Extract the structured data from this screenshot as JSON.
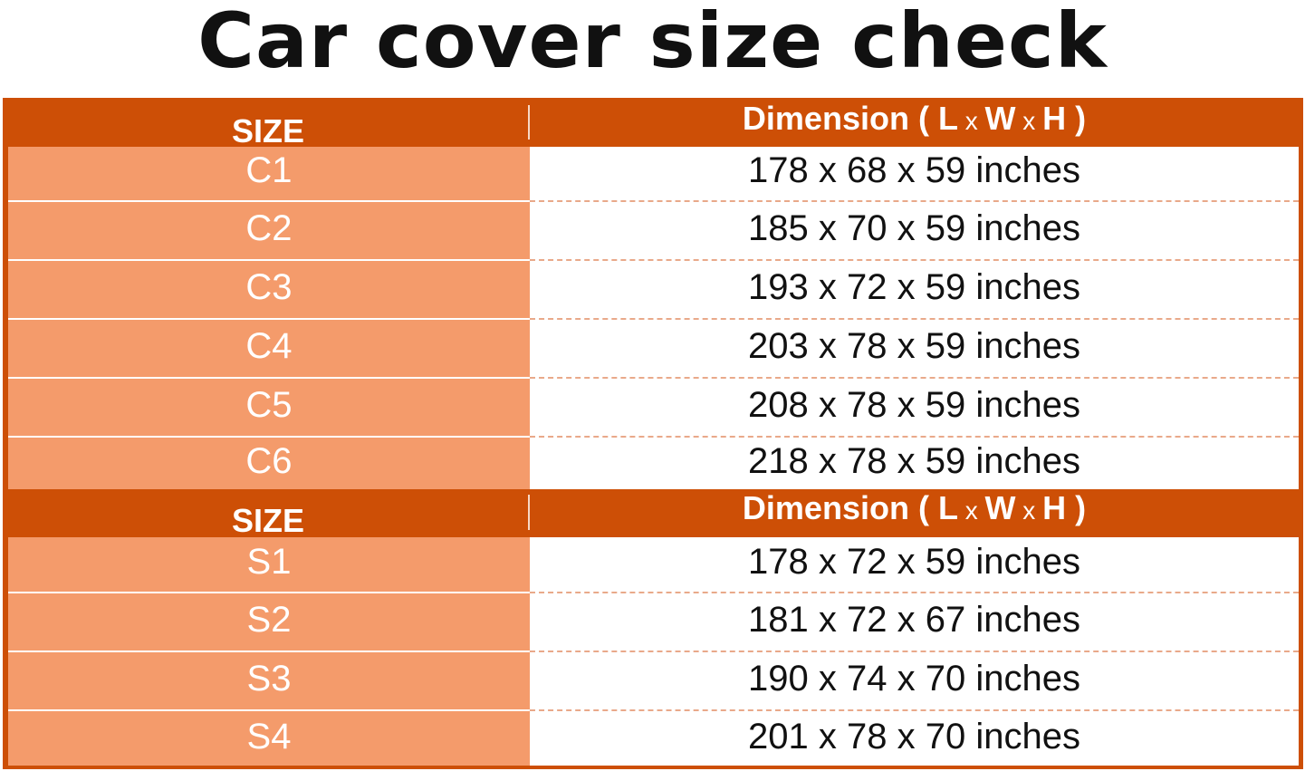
{
  "title": "Car cover size check",
  "colors": {
    "header": "#cd4f06",
    "size_cell": "#f49b6b"
  },
  "sections": [
    {
      "header": {
        "size": "SIZE",
        "dim_prefix": "Dimension ( ",
        "L": "L",
        "x1": " x ",
        "W": "W",
        "x2": " x ",
        "H": "H",
        "suffix": " )"
      },
      "rows": [
        {
          "size": "C1",
          "dim": "178 x 68 x 59 inches"
        },
        {
          "size": "C2",
          "dim": "185 x 70 x 59 inches"
        },
        {
          "size": "C3",
          "dim": "193 x 72 x 59 inches"
        },
        {
          "size": "C4",
          "dim": "203 x 78 x 59 inches"
        },
        {
          "size": "C5",
          "dim": "208 x 78 x 59 inches"
        },
        {
          "size": "C6",
          "dim": "218 x 78 x 59 inches"
        }
      ]
    },
    {
      "header": {
        "size": "SIZE",
        "dim_prefix": "Dimension ( ",
        "L": "L",
        "x1": " x ",
        "W": "W",
        "x2": " x ",
        "H": "H",
        "suffix": " )"
      },
      "rows": [
        {
          "size": "S1",
          "dim": "178 x 72 x 59 inches"
        },
        {
          "size": "S2",
          "dim": "181 x 72 x 67 inches"
        },
        {
          "size": "S3",
          "dim": "190 x 74 x 70 inches"
        },
        {
          "size": "S4",
          "dim": "201 x 78 x 70 inches"
        }
      ]
    }
  ]
}
